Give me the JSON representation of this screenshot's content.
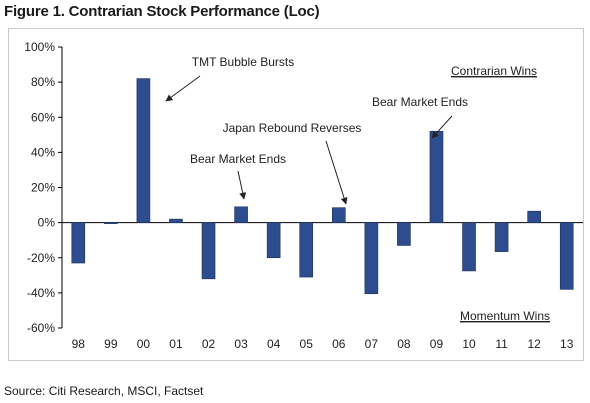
{
  "figure_title": "Figure 1. Contrarian Stock Performance (Loc)",
  "source_note": "Source: Citi Research, MSCI, Factset",
  "chart_data": {
    "type": "bar",
    "categories": [
      "98",
      "99",
      "00",
      "01",
      "02",
      "03",
      "04",
      "05",
      "06",
      "07",
      "08",
      "09",
      "10",
      "11",
      "12",
      "13"
    ],
    "values": [
      -23,
      -0.5,
      82,
      2,
      -32,
      9,
      -20,
      -31,
      8.5,
      -40.5,
      -13,
      52,
      -27.5,
      -16.5,
      6.5,
      -38
    ],
    "ylim": [
      -60,
      100
    ],
    "yticks": [
      -60,
      -40,
      -20,
      0,
      20,
      40,
      60,
      80,
      100
    ],
    "ytick_format": "percent",
    "bar_color": "#2e4d8e",
    "grid": false,
    "region_labels": {
      "top": "Contrarian Wins",
      "bottom": "Momentum Wins"
    },
    "annotations": [
      {
        "text": "TMT Bubble Bursts",
        "category": "00"
      },
      {
        "text": "Bear Market Ends",
        "category": "03"
      },
      {
        "text": "Japan Rebound Reverses",
        "category": "06"
      },
      {
        "text": "Bear Market Ends",
        "category": "09"
      }
    ]
  }
}
